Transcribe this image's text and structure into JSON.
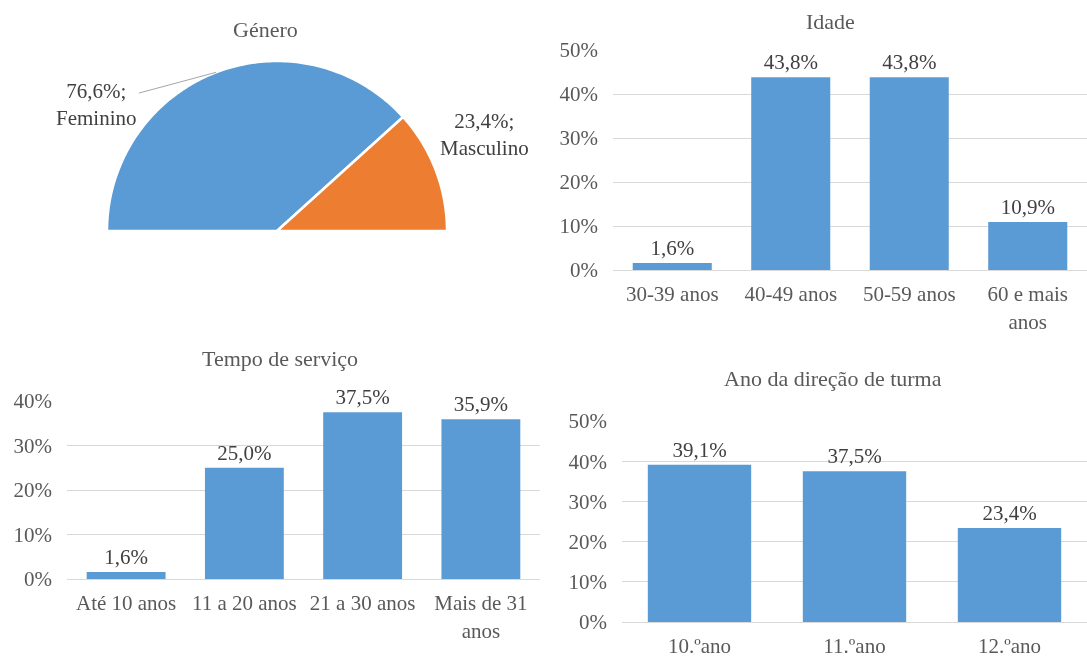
{
  "chart_data": [
    {
      "type": "pie",
      "title": "Género",
      "categories": [
        "Feminino",
        "Masculino"
      ],
      "values": [
        76.6,
        23.4
      ],
      "colors": [
        "#5b9bd5",
        "#ed7d31"
      ],
      "value_labels": [
        "76,6%;",
        "23,4%;"
      ]
    },
    {
      "type": "bar",
      "title": "Idade",
      "categories": [
        "30-39 anos",
        "40-49 anos",
        "50-59 anos",
        "60 e mais anos"
      ],
      "values": [
        1.6,
        43.8,
        43.8,
        10.9
      ],
      "color": "#5b9bd5",
      "value_labels": [
        "1,6%",
        "43,8%",
        "43,8%",
        "10,9%"
      ],
      "ylim": [
        0,
        50
      ],
      "yticks": [
        {
          "value": 0,
          "label": "0%"
        },
        {
          "value": 10,
          "label": "10%"
        },
        {
          "value": 20,
          "label": "20%"
        },
        {
          "value": 30,
          "label": "30%"
        },
        {
          "value": 40,
          "label": "40%"
        },
        {
          "value": 50,
          "label": "50%"
        }
      ],
      "grid": "y"
    },
    {
      "type": "bar",
      "title": "Tempo de serviço",
      "categories": [
        "Até 10 anos",
        "11 a 20 anos",
        "21 a 30 anos",
        "Mais de 31 anos"
      ],
      "values": [
        1.6,
        25.0,
        37.5,
        35.9
      ],
      "color": "#5b9bd5",
      "value_labels": [
        "1,6%",
        "25,0%",
        "37,5%",
        "35,9%"
      ],
      "ylim": [
        0,
        40
      ],
      "yticks": [
        {
          "value": 0,
          "label": "0%"
        },
        {
          "value": 10,
          "label": "10%"
        },
        {
          "value": 20,
          "label": "20%"
        },
        {
          "value": 30,
          "label": "30%"
        },
        {
          "value": 40,
          "label": "40%"
        }
      ],
      "grid": "y"
    },
    {
      "type": "bar",
      "title": "Ano da direção de turma",
      "categories": [
        "10.ºano",
        "11.ºano",
        "12.ºano"
      ],
      "values": [
        39.1,
        37.5,
        23.4
      ],
      "color": "#5b9bd5",
      "value_labels": [
        "39,1%",
        "37,5%",
        "23,4%"
      ],
      "ylim": [
        0,
        50
      ],
      "yticks": [
        {
          "value": 0,
          "label": "0%"
        },
        {
          "value": 10,
          "label": "10%"
        },
        {
          "value": 20,
          "label": "20%"
        },
        {
          "value": 30,
          "label": "30%"
        },
        {
          "value": 40,
          "label": "40%"
        },
        {
          "value": 50,
          "label": "50%"
        }
      ],
      "grid": "y"
    }
  ]
}
